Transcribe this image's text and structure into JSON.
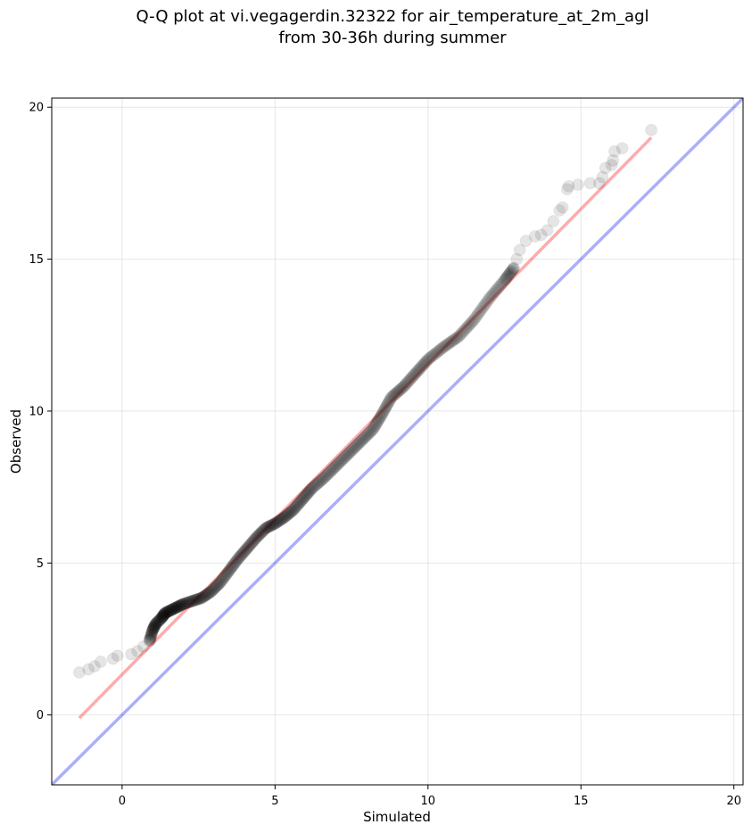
{
  "chart_data": {
    "type": "scatter",
    "title_lines": [
      "Q-Q plot at vi.vegagerdin.32322 for air_temperature_at_2m_agl",
      "from 30-36h during summer"
    ],
    "xlabel": "Simulated",
    "ylabel": "Observed",
    "xlim": [
      -2.3,
      20.3
    ],
    "ylim": [
      -2.3,
      20.3
    ],
    "xticks": [
      0,
      5,
      10,
      15,
      20
    ],
    "yticks": [
      0,
      5,
      10,
      15,
      20
    ],
    "grid": true,
    "colors": {
      "points": "#000000",
      "fit_line": "#ff0000",
      "identity_line": "#0000ee"
    },
    "reference_lines": [
      {
        "kind": "fit",
        "x": [
          -1.4,
          17.3
        ],
        "y": [
          -0.1,
          19.0
        ]
      },
      {
        "kind": "identity",
        "x": [
          -2.3,
          20.3
        ],
        "y": [
          -2.3,
          20.3
        ]
      }
    ],
    "tail_points": [
      [
        -1.4,
        1.4
      ],
      [
        -1.1,
        1.5
      ],
      [
        -0.9,
        1.6
      ],
      [
        -0.7,
        1.75
      ],
      [
        -0.3,
        1.85
      ],
      [
        -0.15,
        1.95
      ],
      [
        0.3,
        2.0
      ],
      [
        0.5,
        2.1
      ],
      [
        0.7,
        2.25
      ],
      [
        0.9,
        2.45
      ],
      [
        12.8,
        14.7
      ],
      [
        12.9,
        15.0
      ],
      [
        13.0,
        15.3
      ],
      [
        13.2,
        15.6
      ],
      [
        13.5,
        15.75
      ],
      [
        13.7,
        15.8
      ],
      [
        13.9,
        15.95
      ],
      [
        14.1,
        16.25
      ],
      [
        14.3,
        16.6
      ],
      [
        14.4,
        16.7
      ],
      [
        14.55,
        17.3
      ],
      [
        14.6,
        17.4
      ],
      [
        14.9,
        17.45
      ],
      [
        15.3,
        17.5
      ],
      [
        15.6,
        17.5
      ],
      [
        15.7,
        17.7
      ],
      [
        15.8,
        18.0
      ],
      [
        16.0,
        18.1
      ],
      [
        16.05,
        18.25
      ],
      [
        16.1,
        18.55
      ],
      [
        16.35,
        18.65
      ],
      [
        17.3,
        19.25
      ]
    ],
    "main_curve": [
      [
        0.9,
        2.45
      ],
      [
        1.0,
        2.8
      ],
      [
        1.1,
        3.0
      ],
      [
        1.3,
        3.2
      ],
      [
        1.4,
        3.35
      ],
      [
        1.6,
        3.45
      ],
      [
        1.8,
        3.55
      ],
      [
        2.0,
        3.65
      ],
      [
        2.3,
        3.75
      ],
      [
        2.6,
        3.85
      ],
      [
        2.9,
        4.05
      ],
      [
        3.2,
        4.35
      ],
      [
        3.5,
        4.75
      ],
      [
        3.8,
        5.15
      ],
      [
        4.1,
        5.5
      ],
      [
        4.4,
        5.85
      ],
      [
        4.7,
        6.15
      ],
      [
        5.0,
        6.3
      ],
      [
        5.3,
        6.5
      ],
      [
        5.6,
        6.75
      ],
      [
        5.9,
        7.1
      ],
      [
        6.2,
        7.45
      ],
      [
        6.6,
        7.8
      ],
      [
        7.0,
        8.2
      ],
      [
        7.4,
        8.6
      ],
      [
        7.8,
        9.0
      ],
      [
        8.2,
        9.4
      ],
      [
        8.5,
        9.9
      ],
      [
        8.8,
        10.45
      ],
      [
        9.2,
        10.8
      ],
      [
        9.6,
        11.25
      ],
      [
        10.0,
        11.7
      ],
      [
        10.5,
        12.1
      ],
      [
        11.0,
        12.45
      ],
      [
        11.5,
        13.0
      ],
      [
        12.0,
        13.7
      ],
      [
        12.5,
        14.3
      ],
      [
        12.8,
        14.7
      ]
    ]
  }
}
